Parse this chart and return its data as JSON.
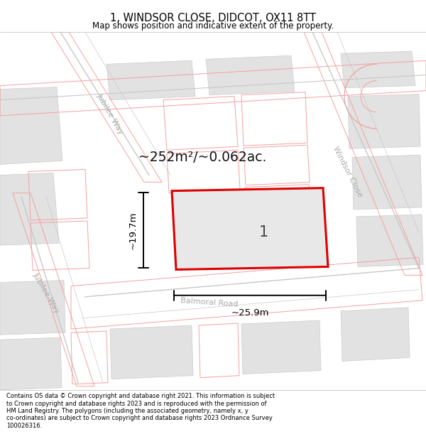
{
  "title": "1, WINDSOR CLOSE, DIDCOT, OX11 8TT",
  "subtitle": "Map shows position and indicative extent of the property.",
  "footer_line1": "Contains OS data © Crown copyright and database right 2021. This information is subject",
  "footer_line2": "to Crown copyright and database rights 2023 and is reproduced with the permission of",
  "footer_line3": "HM Land Registry. The polygons (including the associated geometry, namely x, y",
  "footer_line4": "co-ordinates) are subject to Crown copyright and database rights 2023 Ordnance Survey",
  "footer_line5": "100026316.",
  "area_text": "~252m²/~0.062ac.",
  "width_text": "~25.9m",
  "height_text": "~19.7m",
  "plot_label": "1",
  "map_bg_color": "#ffffff",
  "plot_fill_color": "#e8e8e8",
  "plot_edge_color": "#dd0000",
  "road_line_color": "#f5a0a0",
  "road_center_color": "#c8c8c8",
  "gray_block_color": "#e2e2e2",
  "gray_block_edge": "#cccccc",
  "dim_line_color": "#000000",
  "title_color": "#000000",
  "footer_color": "#000000",
  "street_label_color": "#aaaaaa"
}
